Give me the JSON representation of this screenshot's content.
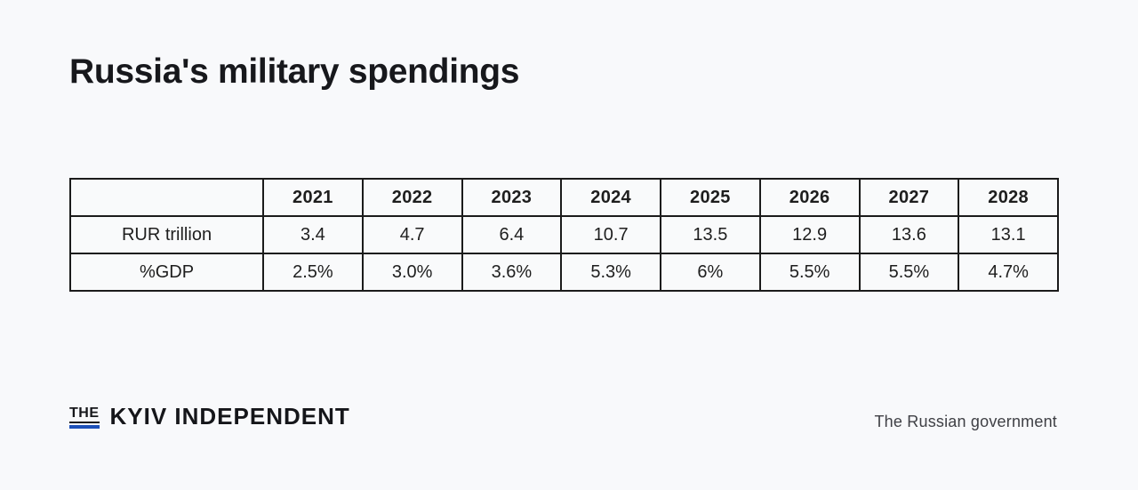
{
  "chart_data": {
    "type": "table",
    "title": "Russia's military spendings",
    "categories": [
      "2021",
      "2022",
      "2023",
      "2024",
      "2025",
      "2026",
      "2027",
      "2028"
    ],
    "series": [
      {
        "name": "RUR trillion",
        "values": [
          "3.4",
          "4.7",
          "6.4",
          "10.7",
          "13.5",
          "12.9",
          "13.6",
          "13.1"
        ]
      },
      {
        "name": "%GDP",
        "values": [
          "2.5%",
          "3.0%",
          "3.6%",
          "5.3%",
          "6%",
          "5.5%",
          "5.5%",
          "4.7%"
        ]
      }
    ],
    "source": "The Russian government",
    "legend_position": "none",
    "grid": "full-table-borders"
  },
  "footer": {
    "logo": {
      "the": "THE",
      "name": "KYIV INDEPENDENT",
      "accent_color": "#1d50b8"
    },
    "source": "The Russian government"
  },
  "colors": {
    "background": "#f8f9fb",
    "title_text": "#17181c",
    "table_border": "#1b1b1b",
    "cell_text": "#1e1e1e",
    "source_text": "#3f4045",
    "logo_accent": "#1d50b8"
  }
}
